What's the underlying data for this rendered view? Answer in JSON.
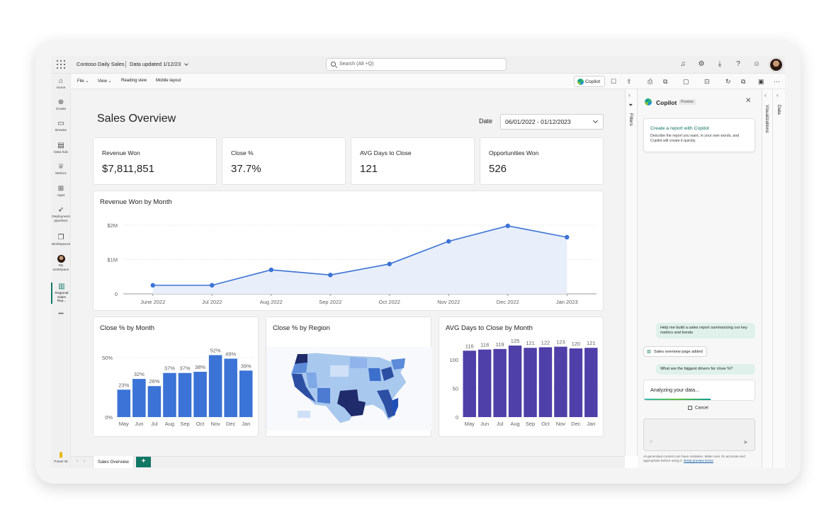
{
  "topbar": {
    "report_name": "Contoso Daily Sales",
    "data_updated": "Data updated 1/12/23",
    "search_placeholder": "Search (Alt +Q)"
  },
  "leftnav": {
    "items": [
      {
        "label": "Home",
        "icon": "home-icon"
      },
      {
        "label": "Create",
        "icon": "plus-circle-icon"
      },
      {
        "label": "Browse",
        "icon": "folder-icon"
      },
      {
        "label": "Data hub",
        "icon": "database-icon"
      },
      {
        "label": "Metrics",
        "icon": "trophy-icon"
      },
      {
        "label": "Apps",
        "icon": "apps-icon"
      },
      {
        "label": "Deployment pipelines",
        "icon": "rocket-icon"
      },
      {
        "label": "Workspaces",
        "icon": "workspaces-icon"
      },
      {
        "label": "My workspace",
        "icon": "avatar"
      },
      {
        "label": "Regional Sales Rep...",
        "icon": "report-icon"
      }
    ],
    "more": "•••",
    "brand": "Power BI"
  },
  "menubar": {
    "items": [
      "File ⌄",
      "View ⌄",
      "Reading view",
      "Mobile layout"
    ],
    "copilot_label": "Copilot"
  },
  "report": {
    "title": "Sales Overview",
    "date_label": "Date",
    "date_range": "06/01/2022 - 01/12/2023",
    "kpis": [
      {
        "label": "Revenue Won",
        "value": "$7,811,851"
      },
      {
        "label": "Close %",
        "value": "37.7%"
      },
      {
        "label": "AVG Days to Close",
        "value": "121"
      },
      {
        "label": "Opportunities Won",
        "value": "526"
      }
    ]
  },
  "chart_data": [
    {
      "type": "area",
      "title": "Revenue Won by Month",
      "categories": [
        "June 2022",
        "Jul 2022",
        "Aug 2022",
        "Sep 2022",
        "Oct 2022",
        "Nov 2022",
        "Dec 2022",
        "Jan 2023"
      ],
      "values": [
        250000,
        250000,
        700000,
        550000,
        870000,
        1530000,
        1980000,
        1650000
      ],
      "yticks": [
        "0",
        "$1M",
        "$2M"
      ],
      "ylim": [
        0,
        2000000
      ],
      "color": "#3b73d6"
    },
    {
      "type": "bar",
      "title": "Close % by Month",
      "categories": [
        "May",
        "Jun",
        "Jul",
        "Aug",
        "Sep",
        "Oct",
        "Nov",
        "Dec",
        "Jan"
      ],
      "values": [
        23,
        32,
        26,
        37,
        37,
        38,
        52,
        49,
        39
      ],
      "labels": [
        "23%",
        "32%",
        "26%",
        "37%",
        "37%",
        "38%",
        "52%",
        "49%",
        "39%"
      ],
      "yticks": [
        "0%",
        "50%"
      ],
      "ylim": [
        0,
        60
      ],
      "color": "#3b73d6"
    },
    {
      "type": "bar",
      "title": "AVG Days to Close by Month",
      "categories": [
        "May",
        "Jun",
        "Jul",
        "Aug",
        "Sep",
        "Oct",
        "Nov",
        "Dec",
        "Jan"
      ],
      "values": [
        116,
        118,
        119,
        125,
        121,
        122,
        123,
        120,
        121
      ],
      "yticks": [
        "0",
        "50",
        "100"
      ],
      "ylim": [
        0,
        125
      ],
      "color": "#4f3fa8"
    }
  ],
  "map": {
    "title": "Close % by Region"
  },
  "filters_label": "Filters",
  "visualizations_label": "Visualizations",
  "data_label": "Data",
  "copilot": {
    "title": "Copilot",
    "badge": "Preview",
    "card_title": "Create a report with Copilot",
    "card_body": "Describe the report you want, in your own words, and Copilot will create it quickly.",
    "msg1": "Help me build a sales report summarizing our key metrics and trends",
    "pill": "Sales overview page added",
    "msg2": "What are the biggest drivers for close %?",
    "analyzing": "Analyzing your data...",
    "cancel": "Cancel",
    "disclaimer": "AI-generated content can have mistakes. Make sure it's accurate and appropriate before using it.",
    "disclaimer_link": "Read preview terms"
  },
  "tabs": {
    "active": "Sales Overview",
    "add": "+"
  }
}
